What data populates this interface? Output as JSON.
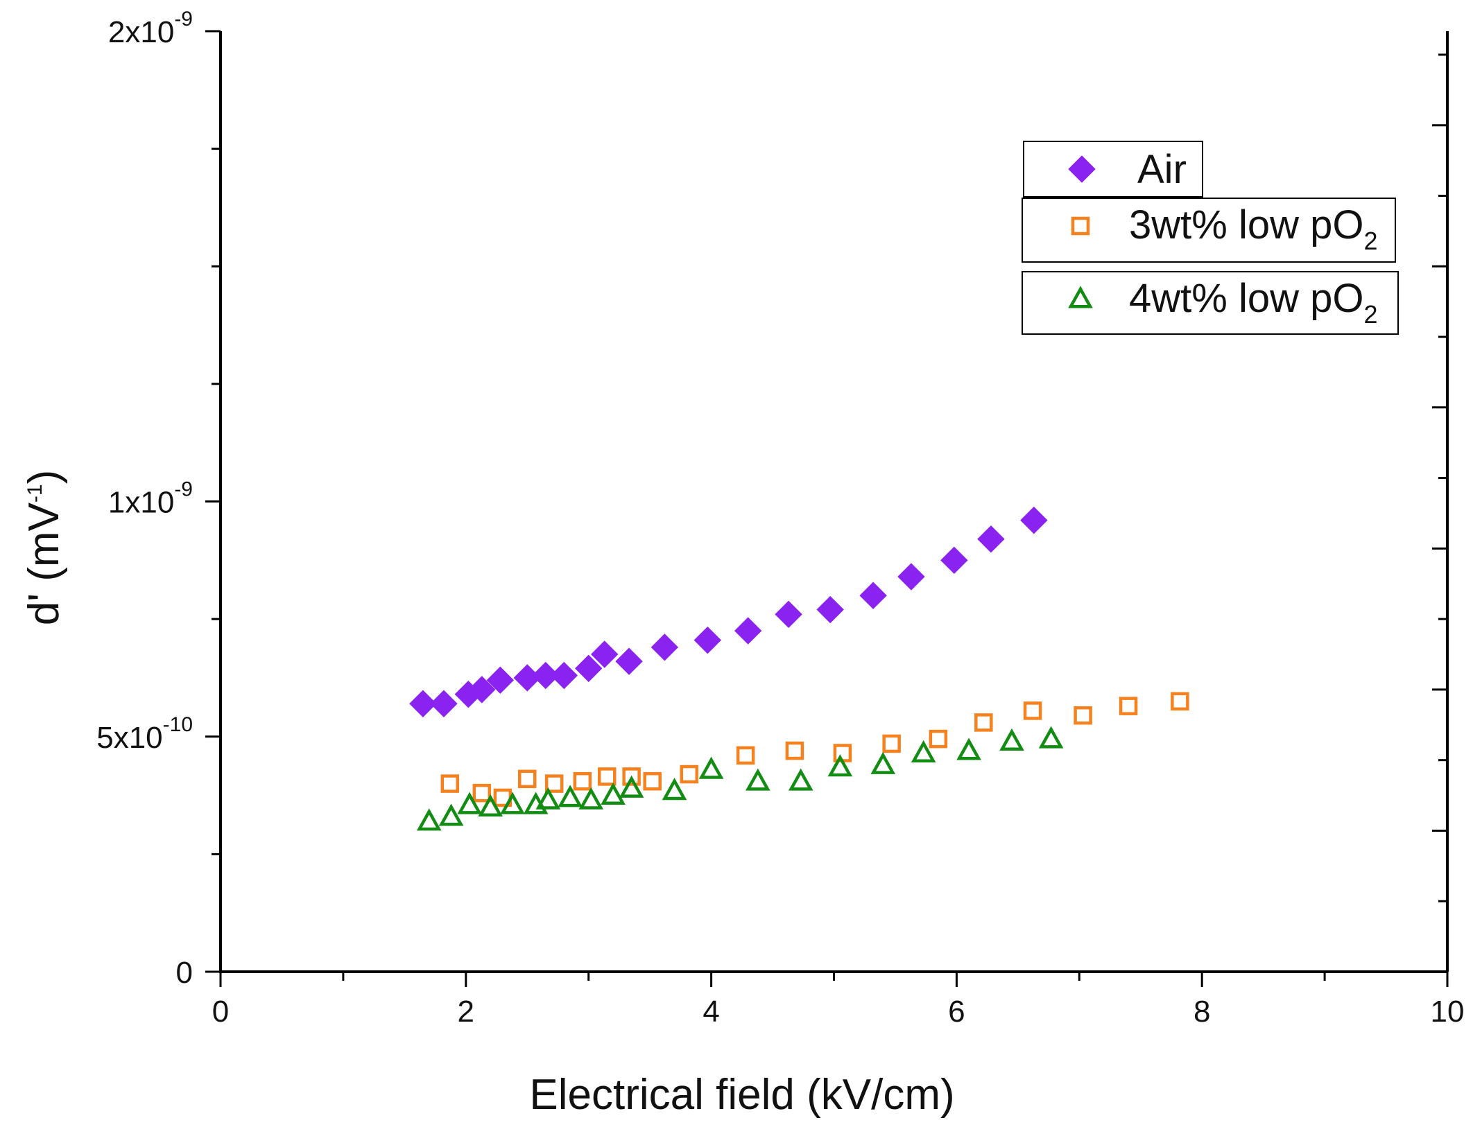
{
  "chart_data": {
    "type": "scatter",
    "title": "",
    "xlabel": "Electrical field (kV/cm)",
    "ylabel": "d' (mV",
    "ylabel_sup": "-1",
    "ylabel_tail": ")",
    "xlim": [
      0,
      10
    ],
    "ylim": [
      0,
      2e-09
    ],
    "grid": false,
    "legend_position": "top-right",
    "x_ticks": [
      {
        "value": 0,
        "label": "0"
      },
      {
        "value": 2,
        "label": "2"
      },
      {
        "value": 4,
        "label": "4"
      },
      {
        "value": 6,
        "label": "6"
      },
      {
        "value": 8,
        "label": "8"
      },
      {
        "value": 10,
        "label": "10"
      }
    ],
    "y_ticks": [
      {
        "value": 0,
        "mant": "0",
        "exp": ""
      },
      {
        "value": 5e-10,
        "mant": "5x10",
        "exp": "-10"
      },
      {
        "value": 1e-09,
        "mant": "1x10",
        "exp": "-9"
      },
      {
        "value": 2e-09,
        "mant": "2x10",
        "exp": "-9"
      }
    ],
    "series": [
      {
        "name": "Air",
        "legend_text": "Air",
        "legend_sub": "",
        "marker": "diamond-filled",
        "color": "#8a22f0",
        "x": [
          1.65,
          1.82,
          2.02,
          2.13,
          2.28,
          2.5,
          2.65,
          2.8,
          3.0,
          3.13,
          3.33,
          3.62,
          3.97,
          4.3,
          4.63,
          4.97,
          5.32,
          5.63,
          5.98,
          6.28,
          6.63
        ],
        "y": [
          5.7e-10,
          5.7e-10,
          5.9e-10,
          6e-10,
          6.2e-10,
          6.25e-10,
          6.3e-10,
          6.3e-10,
          6.45e-10,
          6.75e-10,
          6.6e-10,
          6.9e-10,
          7.05e-10,
          7.25e-10,
          7.6e-10,
          7.7e-10,
          8e-10,
          8.4e-10,
          8.75e-10,
          9.2e-10,
          9.6e-10
        ]
      },
      {
        "name": "3wt% low pO2",
        "legend_text": "3wt% low pO",
        "legend_sub": "2",
        "marker": "square-open",
        "color": "#f5821f",
        "x": [
          1.87,
          2.13,
          2.3,
          2.5,
          2.72,
          2.95,
          3.15,
          3.35,
          3.52,
          3.82,
          4.28,
          4.68,
          5.07,
          5.47,
          5.85,
          6.22,
          6.62,
          7.03,
          7.4,
          7.82
        ],
        "y": [
          4e-10,
          3.8e-10,
          3.7e-10,
          4.1e-10,
          4e-10,
          4.05e-10,
          4.15e-10,
          4.15e-10,
          4.05e-10,
          4.2e-10,
          4.6e-10,
          4.7e-10,
          4.65e-10,
          4.85e-10,
          4.95e-10,
          5.3e-10,
          5.55e-10,
          5.45e-10,
          5.65e-10,
          5.75e-10
        ]
      },
      {
        "name": "4wt% low pO2",
        "legend_text": "4wt% low pO",
        "legend_sub": "2",
        "marker": "triangle-open",
        "color": "#138c13",
        "x": [
          1.7,
          1.88,
          2.03,
          2.2,
          2.38,
          2.57,
          2.67,
          2.85,
          3.02,
          3.2,
          3.35,
          3.7,
          4.0,
          4.38,
          4.73,
          5.05,
          5.4,
          5.73,
          6.1,
          6.45,
          6.77
        ],
        "y": [
          3.2e-10,
          3.3e-10,
          3.55e-10,
          3.5e-10,
          3.55e-10,
          3.55e-10,
          3.65e-10,
          3.7e-10,
          3.65e-10,
          3.75e-10,
          3.9e-10,
          3.85e-10,
          4.3e-10,
          4.05e-10,
          4.05e-10,
          4.35e-10,
          4.4e-10,
          4.65e-10,
          4.7e-10,
          4.9e-10,
          4.95e-10
        ]
      }
    ]
  }
}
